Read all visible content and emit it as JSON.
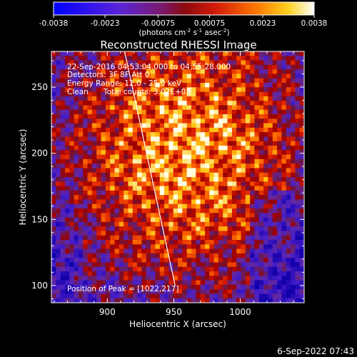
{
  "colorbar": {
    "ticks": [
      "-0.0038",
      "-0.0023",
      "-0.00075",
      "0.00075",
      "0.0023",
      "0.0038"
    ],
    "units_prefix": "(photons cm",
    "units_sup1": "-2",
    "units_mid1": " s",
    "units_sup2": "-1",
    "units_mid2": " asec",
    "units_sup3": "-2",
    "units_suffix": ")",
    "range": [
      -0.0038,
      0.0038
    ]
  },
  "plot": {
    "title": "Reconstructed RHESSI Image",
    "info_lines": [
      "22-Sep-2016 04:53:04.000 to 04:55:28.000",
      "Detectors: 3F 8F  Att 0",
      "Energy Range: 12.0 - 25.0 keV"
    ],
    "clean_label": "Clean",
    "total_counts": "Total counts: 3.02E+03",
    "peak_text": "Position of Peak = [1022,217]",
    "footer_date": "6-Sep-2022 07:43"
  },
  "chart_data": {
    "type": "heatmap",
    "title": "Reconstructed RHESSI Image",
    "xlabel": "Heliocentric X (arcsec)",
    "ylabel": "Heliocentric Y (arcsec)",
    "xlim": [
      858,
      1048
    ],
    "ylim": [
      87,
      277
    ],
    "xticks": [
      900,
      950,
      1000
    ],
    "yticks": [
      100,
      150,
      200,
      250
    ],
    "limb_line": [
      [
        913,
        277
      ],
      [
        951,
        100
      ]
    ],
    "colormap": "blue-purple-red-yellow-white",
    "peak_position": [
      1022,
      217
    ]
  }
}
